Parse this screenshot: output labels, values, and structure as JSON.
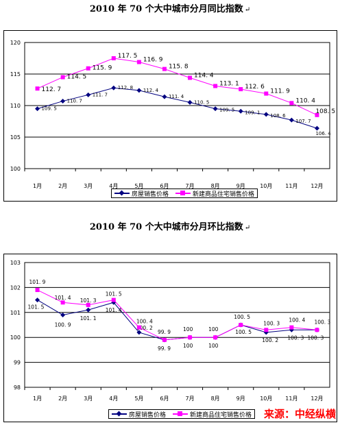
{
  "charts": [
    {
      "title": "2010 年 70 个大中城市分月同比指数",
      "title_mark": "↵",
      "legend": [
        {
          "name": "房屋销售价格",
          "color": "#000080",
          "marker": "diamond"
        },
        {
          "name": "新建商品住宅销售价格",
          "color": "#ff00ff",
          "marker": "square"
        }
      ],
      "chart_data": {
        "type": "line",
        "categories": [
          "1月",
          "2月",
          "3月",
          "4月",
          "5月",
          "6月",
          "7月",
          "8月",
          "9月",
          "10月",
          "11月",
          "12月"
        ],
        "series": [
          {
            "name": "房屋销售价格",
            "values": [
              109.5,
              110.7,
              111.7,
              112.8,
              112.4,
              111.4,
              110.5,
              109.5,
              109.1,
              108.6,
              107.7,
              106.4
            ],
            "labels": [
              "109. 5",
              "110. 7",
              "111. 7",
              "112. 8",
              "112. 4",
              "111. 4",
              "110. 5",
              "109. 5",
              "109. 1",
              "108. 6",
              "107. 7",
              "106. 4"
            ]
          },
          {
            "name": "新建商品住宅销售价格",
            "values": [
              112.7,
              114.5,
              115.9,
              117.5,
              116.9,
              115.8,
              114.4,
              113.1,
              112.6,
              111.9,
              110.4,
              108.5
            ],
            "labels": [
              "112. 7",
              "114. 5",
              "115. 9",
              "117. 5",
              "116. 9",
              "115. 8",
              "114. 4",
              "113. 1",
              "112. 6",
              "111. 9",
              "110. 4",
              "108. 5"
            ]
          }
        ],
        "yticks": [
          100,
          105,
          110,
          115,
          120
        ],
        "ylim": [
          100,
          120
        ],
        "grid": true,
        "legend_position": "bottom"
      }
    },
    {
      "title": "2010 年 70 个大中城市分月环比指数",
      "title_mark": "↵",
      "legend": [
        {
          "name": "房屋销售价格",
          "color": "#000080",
          "marker": "diamond"
        },
        {
          "name": "新建商品住宅销售价格",
          "color": "#ff00ff",
          "marker": "square"
        }
      ],
      "chart_data": {
        "type": "line",
        "categories": [
          "1月",
          "2月",
          "3月",
          "4月",
          "5月",
          "6月",
          "7月",
          "8月",
          "9月",
          "10月",
          "11月",
          "12月"
        ],
        "series": [
          {
            "name": "房屋销售价格",
            "values": [
              101.5,
              100.9,
              101.1,
              101.4,
              100.2,
              99.9,
              100,
              100,
              100.5,
              100.2,
              100.3,
              100.3
            ],
            "labels": [
              "101. 5",
              "100. 9",
              "101. 1",
              "101. 4",
              "100. 2",
              "99. 9",
              "100",
              "100",
              "100. 5",
              "100. 2",
              "100. 3",
              "100. 3"
            ]
          },
          {
            "name": "新建商品住宅销售价格",
            "values": [
              101.9,
              101.4,
              101.3,
              101.5,
              100.4,
              99.9,
              100,
              100,
              100.5,
              100.3,
              100.4,
              100.3
            ],
            "labels": [
              "101. 9",
              "101. 4",
              "101. 3",
              "101. 5",
              "100. 4",
              "99. 9",
              "100",
              "100",
              "100. 5",
              "100. 3",
              "100. 4",
              "100. 3"
            ]
          }
        ],
        "yticks": [
          98,
          99,
          100,
          101,
          102,
          103
        ],
        "ylim": [
          98,
          103
        ],
        "grid": true,
        "legend_position": "bottom"
      }
    }
  ],
  "source": "来源：中经纵横"
}
